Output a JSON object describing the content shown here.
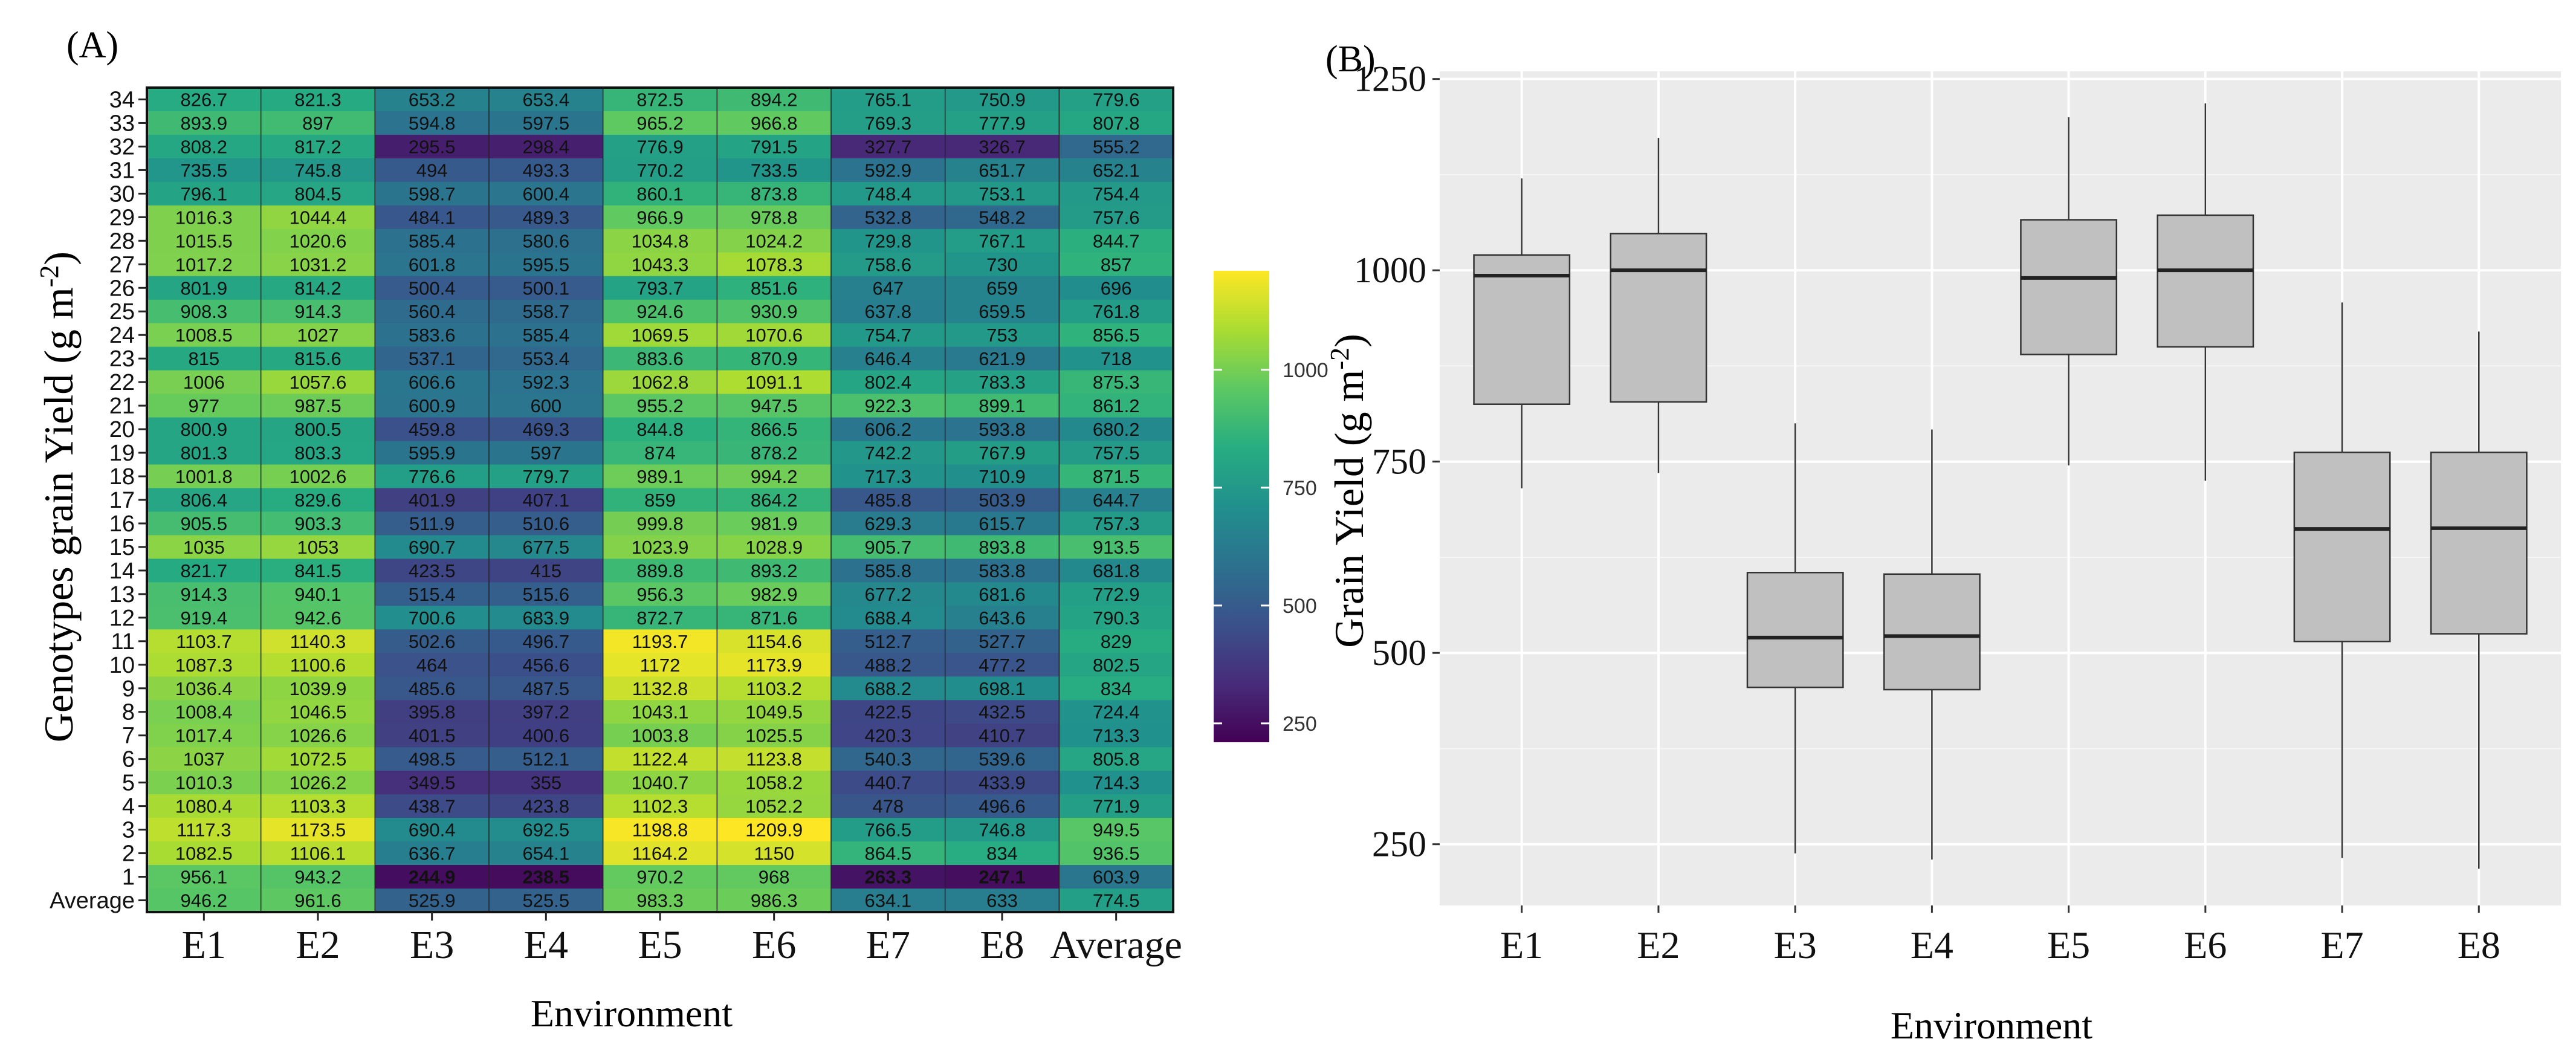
{
  "panels": {
    "a_label": "(A)",
    "b_label": "(B)"
  },
  "chart_data": [
    {
      "type": "heatmap",
      "panel": "A",
      "title": "",
      "xlabel": "Environment",
      "ylabel": "Genotypes grain Yield (g m-2)",
      "ylabel_main": "Genotypes grain Yield (g m",
      "ylabel_sup": "-2",
      "ylabel_end": ")",
      "columns": [
        "E1",
        "E2",
        "E3",
        "E4",
        "E5",
        "E6",
        "E7",
        "E8",
        "Average"
      ],
      "rows": [
        "34",
        "33",
        "32",
        "31",
        "30",
        "29",
        "28",
        "27",
        "26",
        "25",
        "24",
        "23",
        "22",
        "21",
        "20",
        "19",
        "18",
        "17",
        "16",
        "15",
        "14",
        "13",
        "12",
        "11",
        "10",
        "9",
        "8",
        "7",
        "6",
        "5",
        "4",
        "3",
        "2",
        "1",
        "Average"
      ],
      "values": [
        [
          "826.7",
          "821.3",
          "653.2",
          "653.4",
          "872.5",
          "894.2",
          "765.1",
          "750.9",
          "779.6"
        ],
        [
          "893.9",
          "897",
          "594.8",
          "597.5",
          "965.2",
          "966.8",
          "769.3",
          "777.9",
          "807.8"
        ],
        [
          "808.2",
          "817.2",
          "295.5",
          "298.4",
          "776.9",
          "791.5",
          "327.7",
          "326.7",
          "555.2"
        ],
        [
          "735.5",
          "745.8",
          "494",
          "493.3",
          "770.2",
          "733.5",
          "592.9",
          "651.7",
          "652.1"
        ],
        [
          "796.1",
          "804.5",
          "598.7",
          "600.4",
          "860.1",
          "873.8",
          "748.4",
          "753.1",
          "754.4"
        ],
        [
          "1016.3",
          "1044.4",
          "484.1",
          "489.3",
          "966.9",
          "978.8",
          "532.8",
          "548.2",
          "757.6"
        ],
        [
          "1015.5",
          "1020.6",
          "585.4",
          "580.6",
          "1034.8",
          "1024.2",
          "729.8",
          "767.1",
          "844.7"
        ],
        [
          "1017.2",
          "1031.2",
          "601.8",
          "595.5",
          "1043.3",
          "1078.3",
          "758.6",
          "730",
          "857"
        ],
        [
          "801.9",
          "814.2",
          "500.4",
          "500.1",
          "793.7",
          "851.6",
          "647",
          "659",
          "696"
        ],
        [
          "908.3",
          "914.3",
          "560.4",
          "558.7",
          "924.6",
          "930.9",
          "637.8",
          "659.5",
          "761.8"
        ],
        [
          "1008.5",
          "1027",
          "583.6",
          "585.4",
          "1069.5",
          "1070.6",
          "754.7",
          "753",
          "856.5"
        ],
        [
          "815",
          "815.6",
          "537.1",
          "553.4",
          "883.6",
          "870.9",
          "646.4",
          "621.9",
          "718"
        ],
        [
          "1006",
          "1057.6",
          "606.6",
          "592.3",
          "1062.8",
          "1091.1",
          "802.4",
          "783.3",
          "875.3"
        ],
        [
          "977",
          "987.5",
          "600.9",
          "600",
          "955.2",
          "947.5",
          "922.3",
          "899.1",
          "861.2"
        ],
        [
          "800.9",
          "800.5",
          "459.8",
          "469.3",
          "844.8",
          "866.5",
          "606.2",
          "593.8",
          "680.2"
        ],
        [
          "801.3",
          "803.3",
          "595.9",
          "597",
          "874",
          "878.2",
          "742.2",
          "767.9",
          "757.5"
        ],
        [
          "1001.8",
          "1002.6",
          "776.6",
          "779.7",
          "989.1",
          "994.2",
          "717.3",
          "710.9",
          "871.5"
        ],
        [
          "806.4",
          "829.6",
          "401.9",
          "407.1",
          "859",
          "864.2",
          "485.8",
          "503.9",
          "644.7"
        ],
        [
          "905.5",
          "903.3",
          "511.9",
          "510.6",
          "999.8",
          "981.9",
          "629.3",
          "615.7",
          "757.3"
        ],
        [
          "1035",
          "1053",
          "690.7",
          "677.5",
          "1023.9",
          "1028.9",
          "905.7",
          "893.8",
          "913.5"
        ],
        [
          "821.7",
          "841.5",
          "423.5",
          "415",
          "889.8",
          "893.2",
          "585.8",
          "583.8",
          "681.8"
        ],
        [
          "914.3",
          "940.1",
          "515.4",
          "515.6",
          "956.3",
          "982.9",
          "677.2",
          "681.6",
          "772.9"
        ],
        [
          "919.4",
          "942.6",
          "700.6",
          "683.9",
          "872.7",
          "871.6",
          "688.4",
          "643.6",
          "790.3"
        ],
        [
          "1103.7",
          "1140.3",
          "502.6",
          "496.7",
          "1193.7",
          "1154.6",
          "512.7",
          "527.7",
          "829"
        ],
        [
          "1087.3",
          "1100.6",
          "464",
          "456.6",
          "1172",
          "1173.9",
          "488.2",
          "477.2",
          "802.5"
        ],
        [
          "1036.4",
          "1039.9",
          "485.6",
          "487.5",
          "1132.8",
          "1103.2",
          "688.2",
          "698.1",
          "834"
        ],
        [
          "1008.4",
          "1046.5",
          "395.8",
          "397.2",
          "1043.1",
          "1049.5",
          "422.5",
          "432.5",
          "724.4"
        ],
        [
          "1017.4",
          "1026.6",
          "401.5",
          "400.6",
          "1003.8",
          "1025.5",
          "420.3",
          "410.7",
          "713.3"
        ],
        [
          "1037",
          "1072.5",
          "498.5",
          "512.1",
          "1122.4",
          "1123.8",
          "540.3",
          "539.6",
          "805.8"
        ],
        [
          "1010.3",
          "1026.2",
          "349.5",
          "355",
          "1040.7",
          "1058.2",
          "440.7",
          "433.9",
          "714.3"
        ],
        [
          "1080.4",
          "1103.3",
          "438.7",
          "423.8",
          "1102.3",
          "1052.2",
          "478",
          "496.6",
          "771.9"
        ],
        [
          "1117.3",
          "1173.5",
          "690.4",
          "692.5",
          "1198.8",
          "1209.9",
          "766.5",
          "746.8",
          "949.5"
        ],
        [
          "1082.5",
          "1106.1",
          "636.7",
          "654.1",
          "1164.2",
          "1150",
          "864.5",
          "834",
          "936.5"
        ],
        [
          "956.1",
          "943.2",
          "244.9",
          "238.5",
          "970.2",
          "968",
          "263.3",
          "247.1",
          "603.9"
        ],
        [
          "946.2",
          "961.6",
          "525.9",
          "525.5",
          "983.3",
          "986.3",
          "634.1",
          "633",
          "774.5"
        ]
      ],
      "bold_cells": [
        [
          33,
          2
        ],
        [
          33,
          3
        ],
        [
          33,
          6
        ],
        [
          33,
          7
        ]
      ],
      "colorbar": {
        "ticks": [
          "250",
          "500",
          "750",
          "1000"
        ],
        "range": [
          210,
          1210
        ]
      }
    },
    {
      "type": "boxplot",
      "panel": "B",
      "title": "",
      "xlabel": "Environment",
      "ylabel": "Grain Yield (g m-2)",
      "ylabel_main": "Grain Yield (g m",
      "ylabel_sup": "-2",
      "ylabel_end": ")",
      "categories": [
        "E1",
        "E2",
        "E3",
        "E4",
        "E5",
        "E6",
        "E7",
        "E8"
      ],
      "ylim": [
        170,
        1260
      ],
      "yticks": [
        250,
        500,
        750,
        1000,
        1250
      ],
      "yticklabels": [
        "250",
        "500",
        "750",
        "1000",
        "1250"
      ],
      "boxes": [
        {
          "min": 715,
          "q1": 825,
          "median": 993,
          "q3": 1020,
          "max": 1120
        },
        {
          "min": 735,
          "q1": 828,
          "median": 1000,
          "q3": 1048,
          "max": 1173
        },
        {
          "min": 238,
          "q1": 455,
          "median": 520,
          "q3": 605,
          "max": 800
        },
        {
          "min": 230,
          "q1": 452,
          "median": 522,
          "q3": 603,
          "max": 792
        },
        {
          "min": 745,
          "q1": 890,
          "median": 990,
          "q3": 1066,
          "max": 1200
        },
        {
          "min": 725,
          "q1": 900,
          "median": 1000,
          "q3": 1072,
          "max": 1218
        },
        {
          "min": 232,
          "q1": 515,
          "median": 662,
          "q3": 762,
          "max": 958
        },
        {
          "min": 218,
          "q1": 525,
          "median": 663,
          "q3": 762,
          "max": 920
        }
      ]
    }
  ]
}
